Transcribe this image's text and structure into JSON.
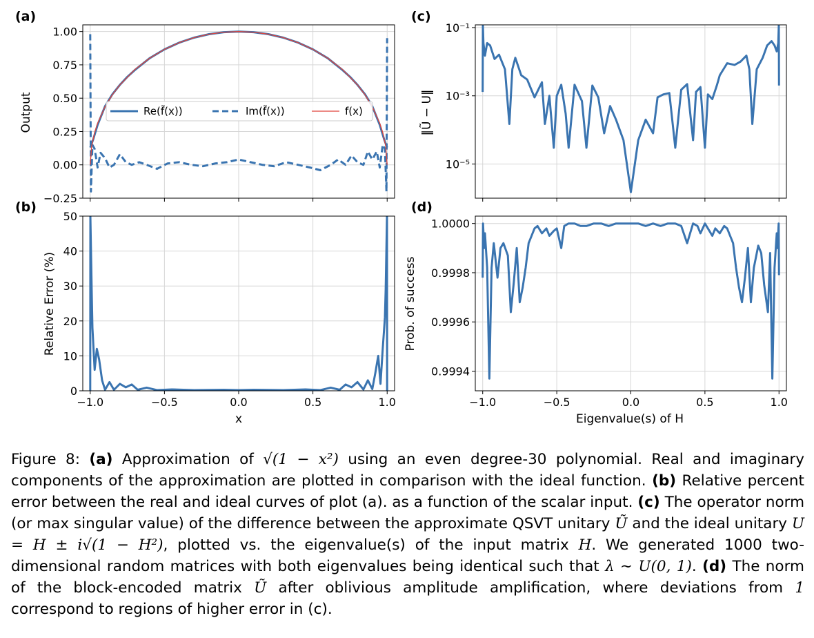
{
  "colors": {
    "line": "#3a74b0",
    "ideal": "#e0453c",
    "grid": "#d6d6d6"
  },
  "panels": {
    "a": {
      "letter": "(a)",
      "ylabel": "Output"
    },
    "b": {
      "letter": "(b)",
      "ylabel": "Relative Error (%)",
      "xlabel": "x"
    },
    "c": {
      "letter": "(c)",
      "ylabel": "‖Ũ − U‖"
    },
    "d": {
      "letter": "(d)",
      "ylabel": "Prob. of success",
      "xlabel": "Eigenvalue(s) of H"
    }
  },
  "caption": {
    "fig_label": "Figure 8:",
    "a_label": "(a)",
    "a_text_1": "Approximation of",
    "a_math": "√(1 − x²)",
    "a_text_2": "using an even degree-30 polynomial. Real and imaginary components of the approximation are plotted in comparison with the ideal function.",
    "b_label": "(b)",
    "b_text": "Relative percent error between the real and ideal curves of plot (a). as a function of the scalar input.",
    "c_label": "(c)",
    "c_text_1": "The operator norm (or max singular value) of the difference between the approximate QSVT unitary",
    "c_math_1": "Ũ",
    "c_text_2": "and the ideal unitary",
    "c_math_2": "U = H ± i√(1 − H²)",
    "c_text_3": ", plotted vs. the eigenvalue(s) of the input matrix",
    "c_math_3": "H",
    "c_text_4": ". We generated 1000 two-dimensional random matrices with both eigenvalues being identical such that",
    "c_math_4": "λ ∼ U(0, 1)",
    "c_text_5": ".",
    "d_label": "(d)",
    "d_text_1": "The norm of the block-encoded matrix",
    "d_math_1": "Ũ",
    "d_text_2": "after oblivious amplitude amplification, where deviations from",
    "d_math_2": "1",
    "d_text_3": "correspond to regions of higher error in (c)."
  },
  "chart_data": [
    {
      "id": "a",
      "type": "line",
      "title": "",
      "xlabel": "",
      "ylabel": "Output",
      "xlim": [
        -1.05,
        1.05
      ],
      "ylim": [
        -0.25,
        1.05
      ],
      "yticks": [
        -0.25,
        0.0,
        0.25,
        0.5,
        0.75,
        1.0
      ],
      "ytick_labels": [
        "−0.25",
        "0.00",
        "0.25",
        "0.50",
        "0.75",
        "1.00"
      ],
      "xticks": [
        -1.0,
        -0.5,
        0.0,
        0.5,
        1.0
      ],
      "grid": true,
      "legend": {
        "placement": "center",
        "entries": [
          "Re(f̃(x))",
          "Im(f̃(x))",
          "f(x)"
        ]
      },
      "series": [
        {
          "name": "Re(f̃(x))",
          "style": "solid",
          "color": "#3a74b0",
          "x": [
            -1.0,
            -0.98,
            -0.95,
            -0.9,
            -0.85,
            -0.8,
            -0.75,
            -0.7,
            -0.6,
            -0.5,
            -0.4,
            -0.3,
            -0.2,
            -0.1,
            0.0,
            0.1,
            0.2,
            0.3,
            0.4,
            0.5,
            0.6,
            0.7,
            0.75,
            0.8,
            0.85,
            0.9,
            0.95,
            0.98,
            1.0
          ],
          "y": [
            0.13,
            0.19,
            0.3,
            0.44,
            0.53,
            0.6,
            0.66,
            0.71,
            0.8,
            0.866,
            0.917,
            0.954,
            0.98,
            0.995,
            1.0,
            0.995,
            0.98,
            0.954,
            0.917,
            0.866,
            0.8,
            0.71,
            0.66,
            0.6,
            0.53,
            0.44,
            0.3,
            0.19,
            0.13
          ]
        },
        {
          "name": "Im(f̃(x))",
          "style": "dashed",
          "color": "#3a74b0",
          "x": [
            -1.0,
            -0.995,
            -0.985,
            -0.97,
            -0.95,
            -0.93,
            -0.9,
            -0.87,
            -0.84,
            -0.8,
            -0.76,
            -0.72,
            -0.67,
            -0.62,
            -0.55,
            -0.48,
            -0.4,
            -0.32,
            -0.24,
            -0.16,
            -0.08,
            0.0,
            0.08,
            0.16,
            0.24,
            0.32,
            0.4,
            0.48,
            0.55,
            0.62,
            0.67,
            0.72,
            0.76,
            0.8,
            0.84,
            0.87,
            0.9,
            0.93,
            0.95,
            0.97,
            0.985,
            0.995,
            1.0
          ],
          "y": [
            0.98,
            -0.2,
            0.15,
            0.12,
            -0.02,
            0.09,
            0.05,
            -0.02,
            0.0,
            0.08,
            0.02,
            0.0,
            0.02,
            0.0,
            -0.03,
            0.01,
            0.02,
            0.0,
            -0.01,
            0.01,
            0.02,
            0.04,
            0.02,
            0.0,
            -0.01,
            0.02,
            0.0,
            -0.02,
            -0.04,
            0.0,
            0.04,
            0.0,
            0.07,
            0.02,
            0.0,
            0.1,
            0.04,
            0.1,
            -0.02,
            0.15,
            0.12,
            -0.2,
            0.95
          ]
        },
        {
          "name": "f(x)",
          "style": "solid",
          "color": "#e0453c",
          "x": [
            -1.0,
            -0.99,
            -0.97,
            -0.95,
            -0.9,
            -0.85,
            -0.8,
            -0.7,
            -0.6,
            -0.5,
            -0.4,
            -0.3,
            -0.2,
            -0.1,
            0.0,
            0.1,
            0.2,
            0.3,
            0.4,
            0.5,
            0.6,
            0.7,
            0.8,
            0.85,
            0.9,
            0.95,
            0.97,
            0.99,
            1.0
          ],
          "y": [
            0.0,
            0.141,
            0.243,
            0.312,
            0.436,
            0.527,
            0.6,
            0.714,
            0.8,
            0.866,
            0.917,
            0.954,
            0.98,
            0.995,
            1.0,
            0.995,
            0.98,
            0.954,
            0.917,
            0.866,
            0.8,
            0.714,
            0.6,
            0.527,
            0.436,
            0.312,
            0.243,
            0.141,
            0.0
          ]
        }
      ]
    },
    {
      "id": "b",
      "type": "line",
      "title": "",
      "xlabel": "x",
      "ylabel": "Relative Error (%)",
      "xlim": [
        -1.05,
        1.05
      ],
      "ylim": [
        0,
        50
      ],
      "yticks": [
        0,
        10,
        20,
        30,
        40,
        50
      ],
      "xticks": [
        -1.0,
        -0.5,
        0.0,
        0.5,
        1.0
      ],
      "xtick_labels": [
        "−1.0",
        "−0.5",
        "0.0",
        "0.5",
        "1.0"
      ],
      "grid": true,
      "series": [
        {
          "name": "",
          "color": "#3a74b0",
          "x": [
            -1.0,
            -0.999,
            -0.99,
            -0.985,
            -0.97,
            -0.955,
            -0.94,
            -0.92,
            -0.9,
            -0.87,
            -0.84,
            -0.8,
            -0.76,
            -0.72,
            -0.68,
            -0.62,
            -0.55,
            -0.45,
            -0.3,
            -0.1,
            0.0,
            0.1,
            0.3,
            0.45,
            0.55,
            0.62,
            0.68,
            0.72,
            0.76,
            0.8,
            0.84,
            0.87,
            0.9,
            0.92,
            0.94,
            0.955,
            0.97,
            0.985,
            0.99,
            0.999,
            1.0
          ],
          "y": [
            0,
            50,
            29,
            18,
            6,
            12,
            9,
            3,
            0.3,
            2.5,
            0.3,
            2,
            1.0,
            1.8,
            0.3,
            0.9,
            0.2,
            0.4,
            0.2,
            0.3,
            0.2,
            0.3,
            0.2,
            0.4,
            0.2,
            0.9,
            0.3,
            1.8,
            1.0,
            2.5,
            0.4,
            3,
            0.5,
            5,
            10,
            2,
            12,
            21,
            29,
            50,
            0
          ]
        }
      ]
    },
    {
      "id": "c",
      "type": "line",
      "title": "",
      "xlabel": "",
      "ylabel": "‖Ũ − U‖",
      "yscale": "log",
      "xlim": [
        -1.05,
        1.05
      ],
      "ylim": [
        1e-06,
        0.12
      ],
      "yticks": [
        1e-05,
        0.001,
        0.1
      ],
      "ytick_labels": [
        "10⁻⁵",
        "10⁻³",
        "10⁻¹"
      ],
      "xticks": [
        -1.0,
        -0.5,
        0.0,
        0.5,
        1.0
      ],
      "grid": true,
      "series": [
        {
          "name": "",
          "color": "#3a74b0",
          "x": [
            -1.0,
            -0.999,
            -0.995,
            -0.985,
            -0.97,
            -0.95,
            -0.92,
            -0.89,
            -0.85,
            -0.82,
            -0.8,
            -0.78,
            -0.74,
            -0.7,
            -0.65,
            -0.6,
            -0.58,
            -0.55,
            -0.52,
            -0.5,
            -0.47,
            -0.44,
            -0.42,
            -0.38,
            -0.33,
            -0.3,
            -0.26,
            -0.22,
            -0.18,
            -0.14,
            -0.1,
            -0.05,
            0.0,
            0.05,
            0.1,
            0.15,
            0.18,
            0.22,
            0.26,
            0.3,
            0.34,
            0.38,
            0.42,
            0.44,
            0.47,
            0.5,
            0.52,
            0.55,
            0.58,
            0.6,
            0.65,
            0.7,
            0.74,
            0.78,
            0.8,
            0.82,
            0.85,
            0.89,
            0.92,
            0.95,
            0.97,
            0.985,
            0.995,
            0.999,
            1.0
          ],
          "y": [
            0.0013,
            0.12,
            0.035,
            0.015,
            0.035,
            0.03,
            0.012,
            0.016,
            0.006,
            0.00015,
            0.006,
            0.013,
            0.004,
            0.003,
            0.0009,
            0.0025,
            0.00015,
            0.001,
            3e-05,
            0.001,
            0.0021,
            0.0003,
            3e-05,
            0.0021,
            0.0007,
            3e-05,
            0.002,
            0.0009,
            8e-05,
            0.0005,
            0.0002,
            5e-05,
            1.5e-06,
            5e-05,
            0.0002,
            8e-05,
            0.0009,
            0.0011,
            0.0012,
            3e-05,
            0.0015,
            0.0022,
            5e-05,
            0.0013,
            0.0018,
            3e-05,
            0.0011,
            0.0008,
            0.002,
            0.004,
            0.009,
            0.008,
            0.01,
            0.015,
            0.006,
            0.00015,
            0.006,
            0.013,
            0.03,
            0.04,
            0.03,
            0.02,
            0.035,
            0.12,
            0.002
          ]
        }
      ]
    },
    {
      "id": "d",
      "type": "line",
      "title": "",
      "xlabel": "Eigenvalue(s) of H",
      "ylabel": "Prob. of success",
      "xlim": [
        -1.05,
        1.05
      ],
      "ylim": [
        0.99932,
        1.00003
      ],
      "yticks": [
        0.9994,
        0.9996,
        0.9998,
        1.0
      ],
      "ytick_labels": [
        "0.9994",
        "0.9996",
        "0.9998",
        "1.0000"
      ],
      "xticks": [
        -1.0,
        -0.5,
        0.0,
        0.5,
        1.0
      ],
      "xtick_labels": [
        "−1.0",
        "−0.5",
        "0.0",
        "0.5",
        "1.0"
      ],
      "grid": true,
      "series": [
        {
          "name": "",
          "color": "#3a74b0",
          "x": [
            -1.0,
            -0.998,
            -0.99,
            -0.985,
            -0.97,
            -0.955,
            -0.94,
            -0.925,
            -0.9,
            -0.88,
            -0.86,
            -0.83,
            -0.81,
            -0.79,
            -0.77,
            -0.75,
            -0.73,
            -0.71,
            -0.69,
            -0.67,
            -0.65,
            -0.63,
            -0.6,
            -0.57,
            -0.55,
            -0.52,
            -0.5,
            -0.47,
            -0.45,
            -0.42,
            -0.38,
            -0.34,
            -0.3,
            -0.25,
            -0.2,
            -0.15,
            -0.1,
            -0.05,
            0.0,
            0.05,
            0.1,
            0.15,
            0.2,
            0.25,
            0.3,
            0.34,
            0.38,
            0.42,
            0.45,
            0.47,
            0.5,
            0.52,
            0.55,
            0.57,
            0.6,
            0.63,
            0.65,
            0.67,
            0.69,
            0.71,
            0.73,
            0.75,
            0.77,
            0.79,
            0.81,
            0.83,
            0.86,
            0.88,
            0.9,
            0.925,
            0.94,
            0.955,
            0.97,
            0.985,
            0.99,
            0.998,
            1.0
          ],
          "y": [
            0.99978,
            1.0,
            0.9999,
            0.99996,
            0.99982,
            0.99937,
            0.99982,
            0.99992,
            0.99978,
            0.9999,
            0.99992,
            0.99987,
            0.99964,
            0.99976,
            0.9999,
            0.99968,
            0.99974,
            0.99982,
            0.99992,
            0.99995,
            0.99998,
            0.99999,
            0.99996,
            0.99998,
            0.99995,
            0.99997,
            0.99998,
            0.9999,
            0.99999,
            1.0,
            1.0,
            0.99999,
            0.99999,
            1.0,
            1.0,
            0.99999,
            1.0,
            1.0,
            1.0,
            1.0,
            0.99999,
            1.0,
            0.99999,
            1.0,
            1.0,
            0.99999,
            0.99992,
            1.0,
            0.99999,
            0.99996,
            1.0,
            0.99998,
            0.99995,
            0.99998,
            0.99996,
            0.99999,
            0.99998,
            0.99995,
            0.99992,
            0.99982,
            0.99974,
            0.99968,
            0.99978,
            0.9999,
            0.99968,
            0.99982,
            0.99991,
            0.99988,
            0.99975,
            0.99964,
            0.99988,
            0.99937,
            0.99982,
            0.99996,
            0.9999,
            1.0,
            0.99979
          ]
        }
      ]
    }
  ]
}
